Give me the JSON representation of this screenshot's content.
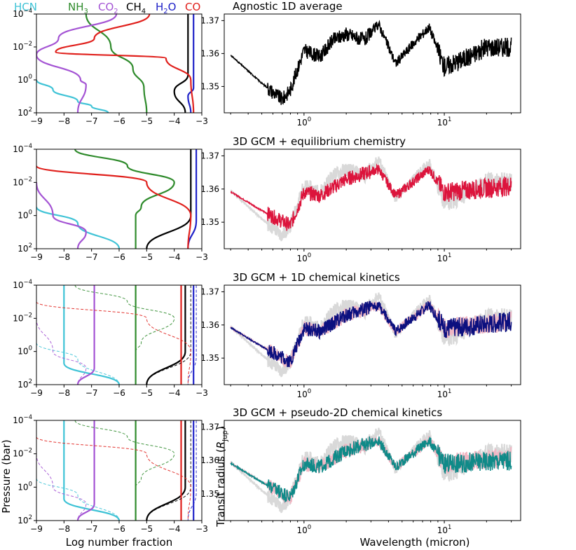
{
  "legend": {
    "species": [
      {
        "label": "HCN",
        "color": "#3fc3d6"
      },
      {
        "label": "NH",
        "sub": "3",
        "color": "#2f8b2c"
      },
      {
        "label": "CO",
        "sub": "2",
        "color": "#a454d4"
      },
      {
        "label": "CH",
        "sub": "4",
        "color": "#000000"
      },
      {
        "label": "H",
        "sub": "2",
        "tail": "O",
        "color": "#1f22c8"
      },
      {
        "label": "CO",
        "color": "#e0201c"
      }
    ]
  },
  "left_axes": {
    "xticks": [
      "−9",
      "−8",
      "−7",
      "−6",
      "−5",
      "−4",
      "−3"
    ],
    "yticks": [
      {
        "m": "10",
        "e": "−4"
      },
      {
        "m": "10",
        "e": "−2"
      },
      {
        "m": "10",
        "e": "0"
      },
      {
        "m": "10",
        "e": "2"
      }
    ],
    "xlabel": "Log number fraction",
    "ylabel": "Pressure (bar)"
  },
  "right_axes": {
    "yticks": [
      "1.35",
      "1.36",
      "1.37"
    ],
    "xticks": [
      {
        "m": "10",
        "e": "0"
      },
      {
        "m": "10",
        "e": "1"
      }
    ],
    "xlabel": "Wavelength (micron)",
    "ylabel_main": "Transit radius (",
    "ylabel_R": "R",
    "ylabel_sub": "Jup",
    "ylabel_end": ")"
  },
  "chart_data": [
    {
      "type": "line",
      "title": "",
      "xlabel": "Log number fraction",
      "ylabel": "Pressure (bar)",
      "xlim": [
        -9,
        -3
      ],
      "ylim": [
        100,
        0.0001
      ],
      "y_scale": "log",
      "series": [
        {
          "name": "HCN",
          "color": "#3fc3d6",
          "values": [
            [
              -9,
              1
            ],
            [
              -8.4,
              4
            ],
            [
              -7.5,
              20
            ],
            [
              -7,
              40
            ],
            [
              -6.4,
              100
            ]
          ]
        },
        {
          "name": "NH3",
          "color": "#2f8b2c",
          "values": [
            [
              -7.2,
              0.0001
            ],
            [
              -6.3,
              0.01
            ],
            [
              -5.5,
              0.2
            ],
            [
              -5.1,
              3
            ],
            [
              -5.0,
              100
            ]
          ]
        },
        {
          "name": "CO2",
          "color": "#a454d4",
          "values": [
            [
              -6.1,
              0.0001
            ],
            [
              -8.2,
              0.003
            ],
            [
              -9,
              0.03
            ],
            [
              -7.4,
              1
            ],
            [
              -7.2,
              2
            ],
            [
              -7.5,
              100
            ]
          ]
        },
        {
          "name": "CH4",
          "color": "#000000",
          "values": [
            [
              -3.5,
              0.0001
            ],
            [
              -3.5,
              0.5
            ],
            [
              -4.0,
              5
            ],
            [
              -3.6,
              100
            ]
          ]
        },
        {
          "name": "H2O",
          "color": "#1f22c8",
          "values": [
            [
              -3.3,
              0.0001
            ],
            [
              -3.3,
              3
            ],
            [
              -3.5,
              10
            ],
            [
              -3.4,
              100
            ]
          ]
        },
        {
          "name": "CO",
          "color": "#e0201c",
          "values": [
            [
              -4.9,
              0.0001
            ],
            [
              -6.9,
              0.003
            ],
            [
              -8.3,
              0.02
            ],
            [
              -4.3,
              0.05
            ],
            [
              -3.4,
              1
            ],
            [
              -3.3,
              100
            ]
          ]
        }
      ]
    },
    {
      "type": "line",
      "title": "Agnostic 1D average",
      "xlabel": "Wavelength (micron)",
      "ylabel": "Transit radius",
      "xlim": [
        0.27,
        35
      ],
      "x_scale": "log",
      "ylim": [
        1.342,
        1.372
      ],
      "series": [
        {
          "name": "Agnostic 1D average",
          "color": "#000000",
          "values": [
            [
              0.3,
              1.3595
            ],
            [
              0.5,
              1.351
            ],
            [
              0.7,
              1.346
            ],
            [
              0.8,
              1.349
            ],
            [
              1.0,
              1.361
            ],
            [
              1.3,
              1.359
            ],
            [
              1.6,
              1.364
            ],
            [
              2.0,
              1.366
            ],
            [
              2.7,
              1.364
            ],
            [
              3.4,
              1.369
            ],
            [
              4.5,
              1.357
            ],
            [
              6.0,
              1.363
            ],
            [
              7.8,
              1.368
            ],
            [
              10,
              1.356
            ],
            [
              15,
              1.359
            ],
            [
              20,
              1.362
            ],
            [
              30,
              1.362
            ]
          ]
        }
      ]
    },
    {
      "type": "line",
      "title": "",
      "xlabel": "Log number fraction",
      "ylabel": "Pressure (bar)",
      "xlim": [
        -9,
        -3
      ],
      "ylim": [
        100,
        0.0001
      ],
      "y_scale": "log",
      "series": [
        {
          "name": "HCN",
          "color": "#3fc3d6",
          "values": [
            [
              -9,
              0.3
            ],
            [
              -7.5,
              3
            ],
            [
              -6,
              100
            ]
          ]
        },
        {
          "name": "NH3",
          "color": "#2f8b2c",
          "values": [
            [
              -7.6,
              0.0001
            ],
            [
              -5.7,
              0.001
            ],
            [
              -4.0,
              0.01
            ],
            [
              -5.2,
              0.3
            ],
            [
              -5.4,
              1
            ],
            [
              -5.4,
              100
            ]
          ]
        },
        {
          "name": "CO2",
          "color": "#a454d4",
          "values": [
            [
              -9,
              0.01
            ],
            [
              -8.4,
              1
            ],
            [
              -7.2,
              10
            ],
            [
              -7.5,
              100
            ]
          ]
        },
        {
          "name": "CH4",
          "color": "#000000",
          "values": [
            [
              -3.4,
              0.0001
            ],
            [
              -3.4,
              1
            ],
            [
              -5,
              100
            ]
          ]
        },
        {
          "name": "H2O",
          "color": "#1f22c8",
          "values": [
            [
              -3.2,
              0.0001
            ],
            [
              -3.2,
              2
            ],
            [
              -3.5,
              100
            ]
          ]
        },
        {
          "name": "CO",
          "color": "#e0201c",
          "values": [
            [
              -9,
              0.001
            ],
            [
              -5,
              0.01
            ],
            [
              -3.4,
              1
            ],
            [
              -3.5,
              100
            ]
          ]
        }
      ]
    },
    {
      "type": "line",
      "title": "3D GCM + equilibrium chemistry",
      "xlabel": "Wavelength (micron)",
      "ylabel": "Transit radius",
      "xlim": [
        0.27,
        35
      ],
      "x_scale": "log",
      "ylim": [
        1.342,
        1.372
      ],
      "series": [
        {
          "name": "3D GCM + equilibrium chemistry",
          "color": "#dc143c",
          "values": [
            [
              0.3,
              1.3592
            ],
            [
              0.5,
              1.3535
            ],
            [
              0.8,
              1.349
            ],
            [
              1.0,
              1.359
            ],
            [
              1.3,
              1.358
            ],
            [
              2.0,
              1.363
            ],
            [
              3.4,
              1.366
            ],
            [
              4.5,
              1.358
            ],
            [
              7.8,
              1.366
            ],
            [
              10,
              1.359
            ],
            [
              30,
              1.361
            ]
          ]
        }
      ]
    },
    {
      "type": "line",
      "title": "",
      "xlabel": "Log number fraction",
      "ylabel": "Pressure (bar)",
      "xlim": [
        -9,
        -3
      ],
      "ylim": [
        100,
        0.0001
      ],
      "y_scale": "log",
      "series": [
        {
          "name": "HCN",
          "color": "#3fc3d6",
          "values": [
            [
              -8.0,
              0.0001
            ],
            [
              -8.0,
              5
            ],
            [
              -6,
              100
            ]
          ]
        },
        {
          "name": "NH3",
          "color": "#2f8b2c",
          "values": [
            [
              -5.4,
              0.0001
            ],
            [
              -5.4,
              100
            ]
          ]
        },
        {
          "name": "CO2",
          "color": "#a454d4",
          "values": [
            [
              -6.9,
              0.0001
            ],
            [
              -6.9,
              10
            ],
            [
              -7.5,
              100
            ]
          ]
        },
        {
          "name": "CH4",
          "color": "#000000",
          "values": [
            [
              -3.6,
              0.0001
            ],
            [
              -3.6,
              1
            ],
            [
              -5,
              100
            ]
          ]
        },
        {
          "name": "H2O",
          "color": "#1f22c8",
          "values": [
            [
              -3.3,
              0.0001
            ],
            [
              -3.3,
              100
            ]
          ]
        },
        {
          "name": "CO",
          "color": "#e0201c",
          "values": [
            [
              -3.75,
              0.0001
            ],
            [
              -3.75,
              100
            ]
          ]
        }
      ]
    },
    {
      "type": "line",
      "title": "3D GCM + 1D chemical kinetics",
      "xlabel": "Wavelength (micron)",
      "ylabel": "Transit radius",
      "xlim": [
        0.27,
        35
      ],
      "x_scale": "log",
      "ylim": [
        1.342,
        1.372
      ],
      "series": [
        {
          "name": "3D GCM + 1D chemical kinetics",
          "color": "#0c107f",
          "values": [
            [
              0.3,
              1.3592
            ],
            [
              0.5,
              1.3535
            ],
            [
              0.8,
              1.349
            ],
            [
              1.0,
              1.359
            ],
            [
              1.3,
              1.358
            ],
            [
              2.0,
              1.363
            ],
            [
              3.4,
              1.366
            ],
            [
              4.5,
              1.358
            ],
            [
              7.8,
              1.366
            ],
            [
              10,
              1.359
            ],
            [
              30,
              1.361
            ]
          ]
        }
      ]
    },
    {
      "type": "line",
      "title": "",
      "xlabel": "Log number fraction",
      "ylabel": "Pressure (bar)",
      "xlim": [
        -9,
        -3
      ],
      "ylim": [
        100,
        0.0001
      ],
      "y_scale": "log",
      "series": [
        {
          "name": "HCN",
          "color": "#3fc3d6",
          "values": [
            [
              -8.0,
              0.0001
            ],
            [
              -8.0,
              5
            ],
            [
              -6,
              100
            ]
          ]
        },
        {
          "name": "NH3",
          "color": "#2f8b2c",
          "values": [
            [
              -5.4,
              0.0001
            ],
            [
              -5.4,
              100
            ]
          ]
        },
        {
          "name": "CO2",
          "color": "#a454d4",
          "values": [
            [
              -6.9,
              0.0001
            ],
            [
              -6.9,
              10
            ],
            [
              -7.5,
              100
            ]
          ]
        },
        {
          "name": "CH4",
          "color": "#000000",
          "values": [
            [
              -3.6,
              0.0001
            ],
            [
              -3.6,
              1
            ],
            [
              -5,
              100
            ]
          ]
        },
        {
          "name": "H2O",
          "color": "#1f22c8",
          "values": [
            [
              -3.3,
              0.0001
            ],
            [
              -3.3,
              100
            ]
          ]
        },
        {
          "name": "CO",
          "color": "#e0201c",
          "values": [
            [
              -3.75,
              0.0001
            ],
            [
              -3.75,
              100
            ]
          ]
        }
      ]
    },
    {
      "type": "line",
      "title": "3D GCM + pseudo-2D chemical kinetics",
      "xlabel": "Wavelength (micron)",
      "ylabel": "Transit radius",
      "xlim": [
        0.27,
        35
      ],
      "x_scale": "log",
      "ylim": [
        1.342,
        1.372
      ],
      "series": [
        {
          "name": "3D GCM + pseudo-2D chemical kinetics",
          "color": "#0f8a88",
          "values": [
            [
              0.3,
              1.3592
            ],
            [
              0.5,
              1.3535
            ],
            [
              0.8,
              1.349
            ],
            [
              1.0,
              1.359
            ],
            [
              1.3,
              1.358
            ],
            [
              2.0,
              1.363
            ],
            [
              3.4,
              1.366
            ],
            [
              4.5,
              1.358
            ],
            [
              7.8,
              1.366
            ],
            [
              10,
              1.359
            ],
            [
              30,
              1.36
            ]
          ]
        }
      ]
    }
  ]
}
